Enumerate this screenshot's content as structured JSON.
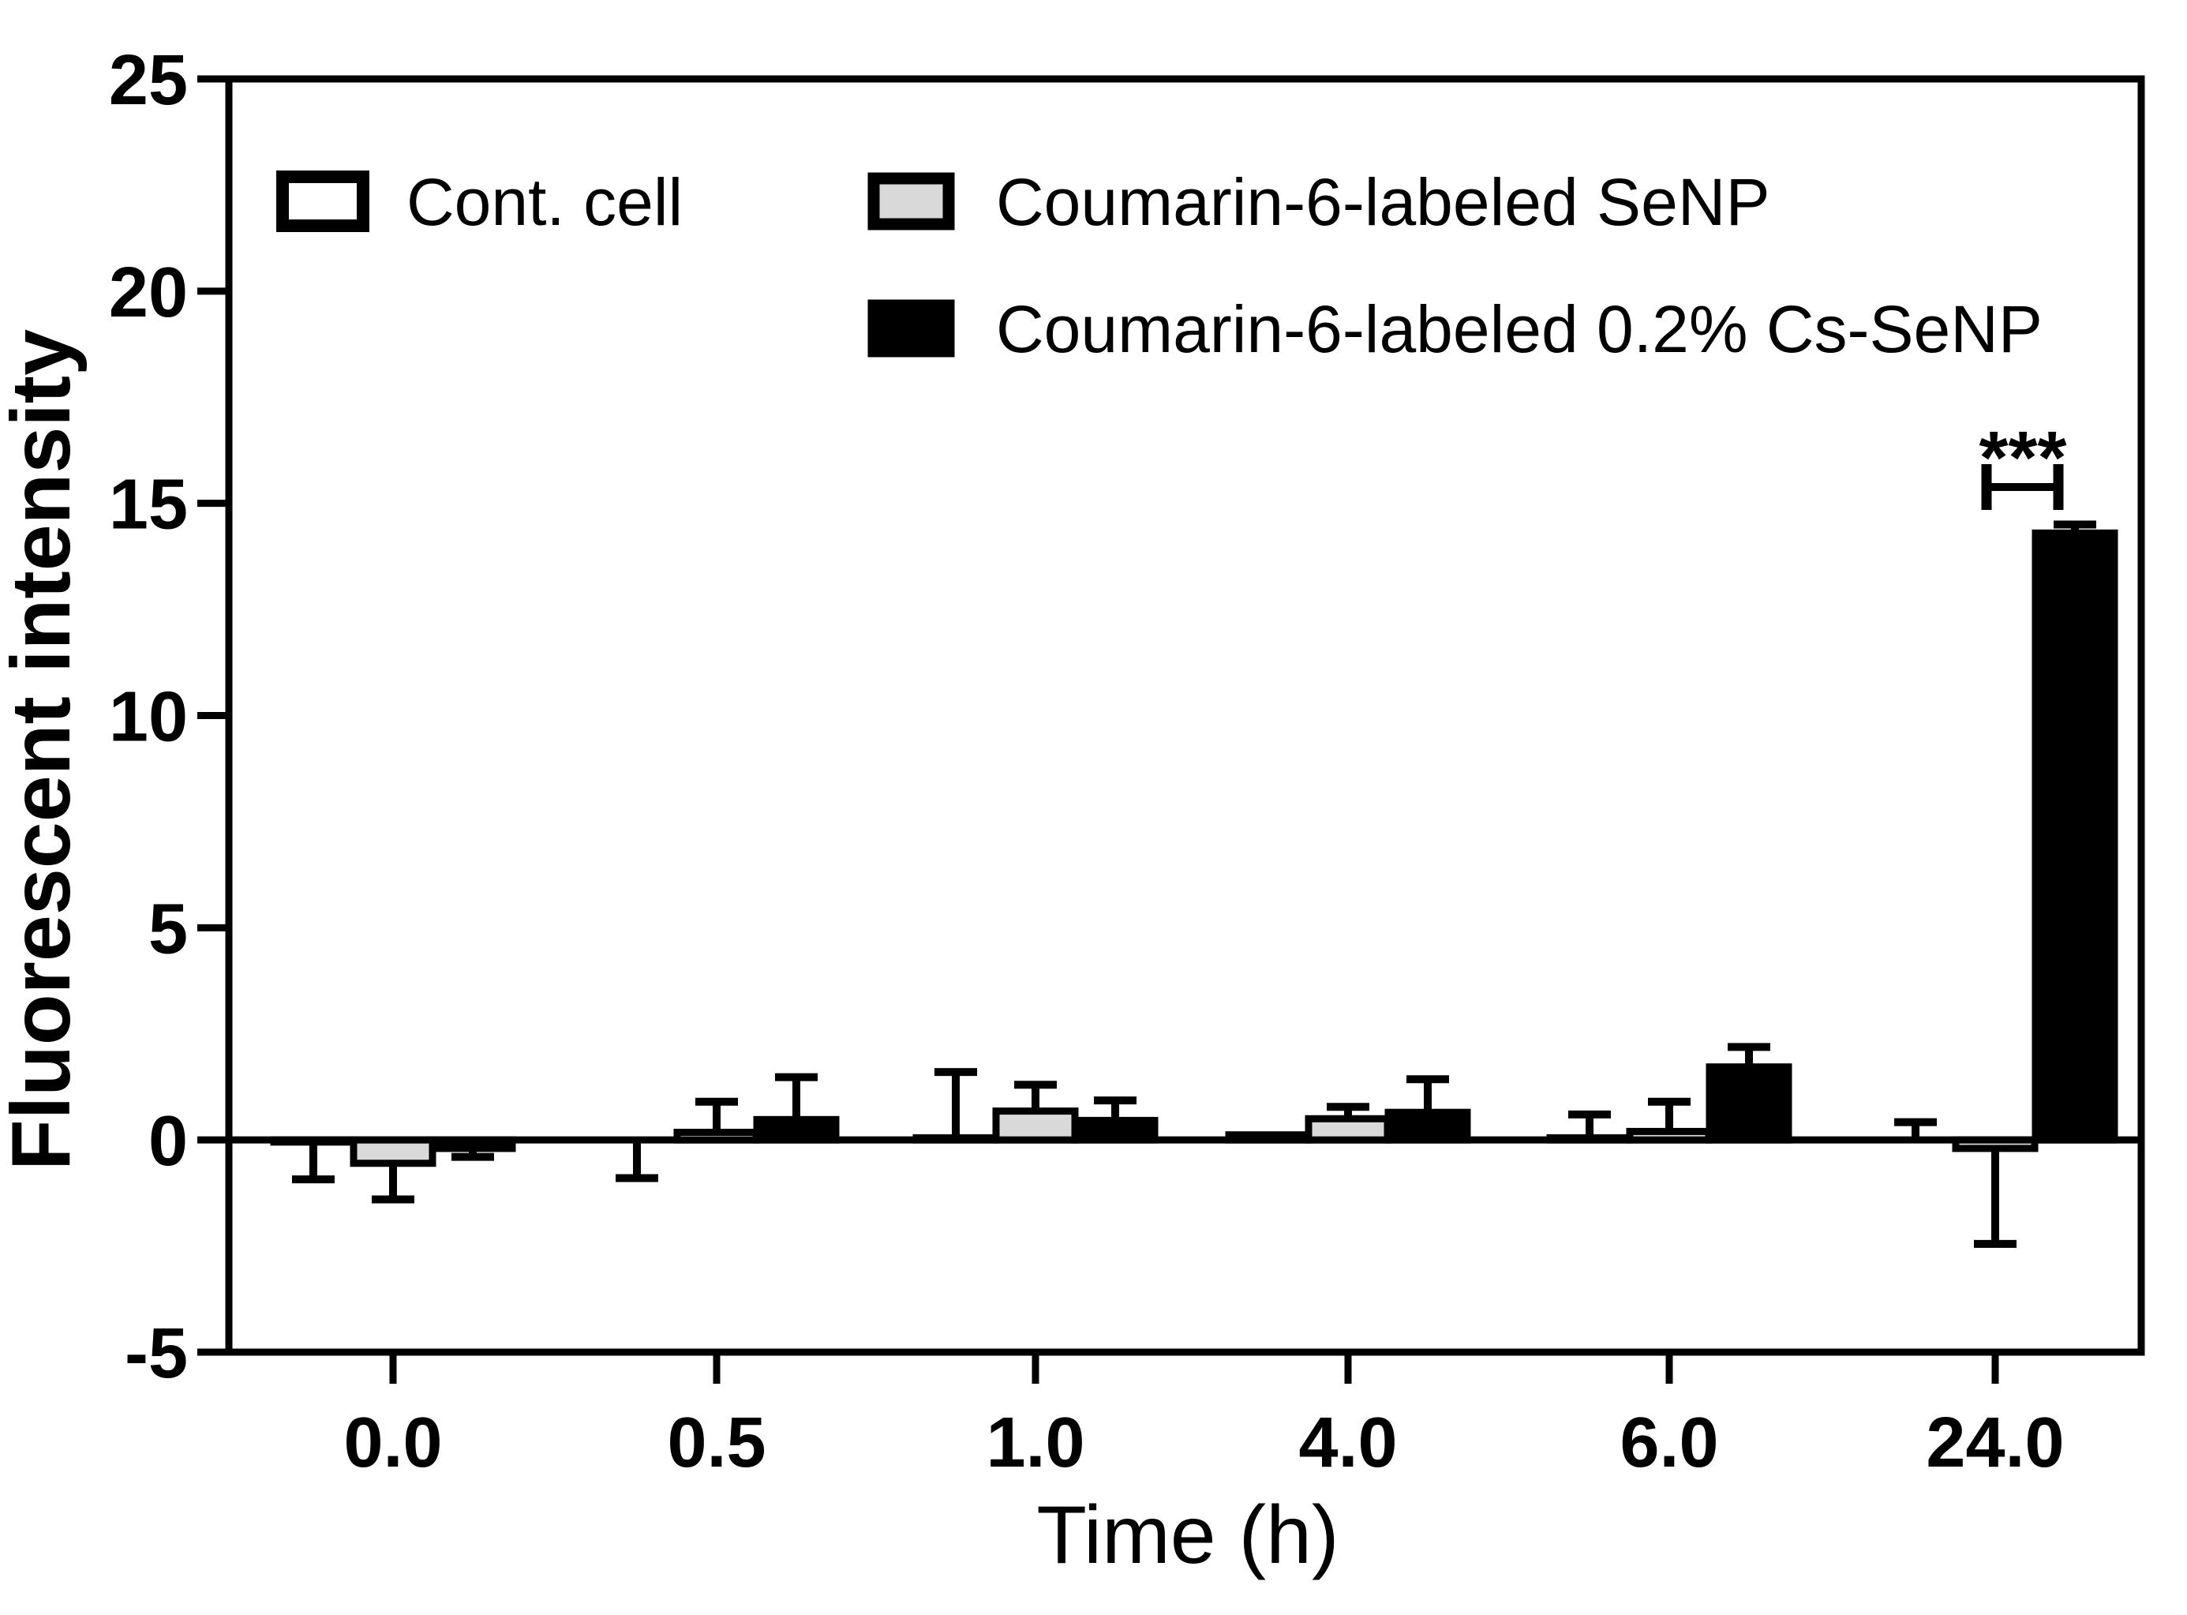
{
  "figure": {
    "type_note": "grouped bar chart with one-sided error bars, GraphPad style"
  },
  "legend": {
    "items": [
      {
        "label": "Cont. cell",
        "fill": "#ffffff"
      },
      {
        "label": "Coumarin-6-labeled SeNP",
        "fill": "#d9d9d9"
      },
      {
        "label": "Coumarin-6-labeled 0.2% Cs-SeNP",
        "fill": "#000000"
      }
    ]
  },
  "chart_data": {
    "type": "bar",
    "title": "",
    "xlabel": "Time (h)",
    "ylabel": "Fluorescent intensity",
    "categories": [
      "0.0",
      "0.5",
      "1.0",
      "4.0",
      "6.0",
      "24.0"
    ],
    "y_ticks": [
      -5,
      0,
      5,
      10,
      15,
      20,
      25
    ],
    "y_tick_labels": [
      "-5",
      "0",
      "5",
      "10",
      "15",
      "20",
      "25"
    ],
    "ylim": [
      -5,
      25
    ],
    "grid": false,
    "frame": true,
    "zero_line": true,
    "legend_position": "top-left-inside",
    "bar_edge_color": "#000000",
    "bar_colors": [
      "#ffffff",
      "#d9d9d9",
      "#000000"
    ],
    "series": [
      {
        "name": "Cont. cell",
        "fill": "#ffffff",
        "values": [
          -0.05,
          0.0,
          0.05,
          0.12,
          0.05,
          0.0
        ],
        "errors": [
          0.88,
          0.9,
          1.55,
          0.0,
          0.55,
          0.42
        ],
        "error_dirs": [
          "down",
          "down",
          "up",
          "up",
          "up",
          "up"
        ]
      },
      {
        "name": "Coumarin-6-labeled SeNP",
        "fill": "#d9d9d9",
        "values": [
          -0.55,
          0.18,
          0.68,
          0.5,
          0.2,
          -0.2
        ],
        "errors": [
          0.85,
          0.72,
          0.62,
          0.28,
          0.7,
          2.25
        ],
        "error_dirs": [
          "down",
          "up",
          "up",
          "up",
          "up",
          "down"
        ]
      },
      {
        "name": "Coumarin-6-labeled 0.2% Cs-SeNP",
        "fill": "#000000",
        "values": [
          -0.2,
          0.48,
          0.46,
          0.65,
          1.72,
          14.3
        ],
        "errors": [
          0.2,
          1.0,
          0.47,
          0.78,
          0.47,
          0.2
        ],
        "error_dirs": [
          "down",
          "up",
          "up",
          "up",
          "up",
          "up"
        ]
      }
    ],
    "significance": {
      "label": "***",
      "category": "24.0",
      "between": [
        "Coumarin-6-labeled SeNP",
        "Coumarin-6-labeled 0.2% Cs-SeNP"
      ],
      "bracket_y_value": 15.4,
      "label_y_value": 16.2
    }
  }
}
